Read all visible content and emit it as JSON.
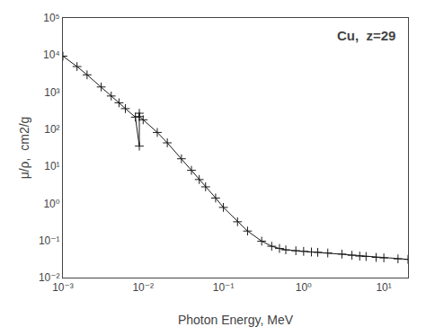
{
  "chart_data": {
    "type": "line",
    "title": "Cu,  z=29",
    "xlabel": "Photon Energy, MeV",
    "ylabel": "μ/ρ,  cm2/g",
    "log": true,
    "grid": false,
    "color": "#1a1a1a",
    "marker": "plus",
    "line_style": "solid",
    "xlim": [
      0.001,
      20
    ],
    "ylim": [
      0.01,
      100000
    ],
    "xticks": [
      {
        "value": 0.001,
        "label": "10⁻³"
      },
      {
        "value": 0.01,
        "label": "10⁻²"
      },
      {
        "value": 0.1,
        "label": "10⁻¹"
      },
      {
        "value": 1,
        "label": "10⁰"
      },
      {
        "value": 10,
        "label": "10¹"
      }
    ],
    "yticks": [
      {
        "value": 0.01,
        "label": "10⁻²"
      },
      {
        "value": 0.1,
        "label": "10⁻¹"
      },
      {
        "value": 1,
        "label": "10⁰"
      },
      {
        "value": 10,
        "label": "10¹"
      },
      {
        "value": 100,
        "label": "10²"
      },
      {
        "value": 1000,
        "label": "10³"
      },
      {
        "value": 10000,
        "label": "10⁴"
      },
      {
        "value": 100000,
        "label": "10⁵"
      }
    ],
    "x": [
      0.001,
      0.0015,
      0.002,
      0.003,
      0.004,
      0.005,
      0.006,
      0.008,
      0.00896,
      0.00896,
      0.00896,
      0.01,
      0.015,
      0.02,
      0.03,
      0.04,
      0.05,
      0.06,
      0.08,
      0.1,
      0.15,
      0.2,
      0.3,
      0.4,
      0.5,
      0.6,
      0.8,
      1.0,
      1.25,
      1.5,
      2.0,
      3.0,
      4.0,
      5.0,
      6.0,
      8.0,
      10.0,
      15.0,
      20.0
    ],
    "values": [
      9340,
      4900,
      2930,
      1380,
      787,
      517,
      360,
      212,
      35.0,
      270.0,
      220.0,
      180.0,
      82.0,
      43.0,
      16.0,
      7.8,
      4.4,
      2.8,
      1.4,
      0.78,
      0.32,
      0.18,
      0.096,
      0.07,
      0.061,
      0.056,
      0.053,
      0.051,
      0.049,
      0.048,
      0.046,
      0.043,
      0.04,
      0.038,
      0.037,
      0.035,
      0.034,
      0.032,
      0.031
    ]
  }
}
